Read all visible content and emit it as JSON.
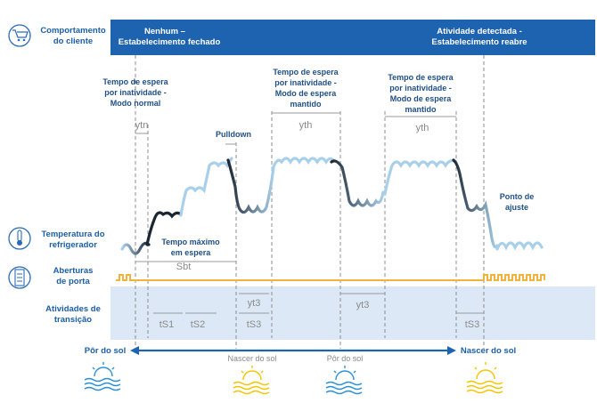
{
  "header": {
    "row_label": "Comportamento do cliente",
    "row_label_l1": "Comportamento",
    "row_label_l2": "do cliente",
    "state_closed_l1": "Nenhum –",
    "state_closed_l2": "Estabelecimento fechado",
    "state_open_l1": "Atividade detectada -",
    "state_open_l2": "Estabelecimento reabre",
    "band_color": "#1e63b0",
    "icon": "shopping-cart-icon"
  },
  "rows": {
    "temperature_l1": "Temperatura do",
    "temperature_l2": "refrigerador",
    "temperature_icon": "thermometer-icon",
    "doors_l1": "Aberturas",
    "doors_l2": "de porta",
    "doors_icon": "fridge-door-icon",
    "transitions_l1": "Atividades de",
    "transitions_l2": "transição"
  },
  "annotations": {
    "wait_normal_l1": "Tempo de espera",
    "wait_normal_l2": "por inatividade -",
    "wait_normal_l3": "Modo normal",
    "ytn": "ytn",
    "pulldown": "Pulldown",
    "wait_kept_a_l1": "Tempo de espera",
    "wait_kept_a_l2": "por inatividade -",
    "wait_kept_a_l3": "Modo de espera",
    "wait_kept_a_l4": "mantido",
    "yth_a": "yth",
    "wait_kept_b_l1": "Tempo de espera",
    "wait_kept_b_l2": "por inatividade -",
    "wait_kept_b_l3": "Modo de espera",
    "wait_kept_b_l4": "mantido",
    "yth_b": "yth",
    "setpoint_l1": "Ponto de",
    "setpoint_l2": "ajuste",
    "max_wait_l1": "Tempo máximo",
    "max_wait_l2": "em espera",
    "sbt": "Sbt",
    "yt3_a": "yt3",
    "yt3_b": "yt3",
    "ts1": "tS1",
    "ts2": "tS2",
    "ts3_a": "tS3",
    "ts3_b": "tS3"
  },
  "timeline": {
    "sunset_left": "Pôr do sol",
    "sunrise_mid": "Nascer do sol",
    "sunset_mid": "Pôr do sol",
    "sunrise_right": "Nascer do sol",
    "arrow_color": "#1e63b0",
    "sun_color": "#f5c400",
    "water_color": "#2a8fd6"
  },
  "colors": {
    "door_line": "#f0b43c",
    "transition_band": "#dce8f6",
    "curve_light": "#a9d0ea",
    "curve_dark": "#1c2633"
  }
}
